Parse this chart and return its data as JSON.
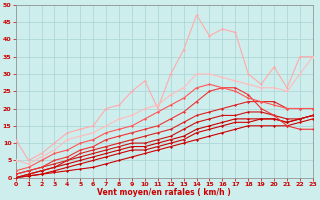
{
  "background_color": "#ceeeed",
  "grid_color": "#a8d4d4",
  "xlabel": "Vent moyen/en rafales ( km/h )",
  "xlim": [
    0,
    23
  ],
  "ylim": [
    0,
    50
  ],
  "yticks": [
    0,
    5,
    10,
    15,
    20,
    25,
    30,
    35,
    40,
    45,
    50
  ],
  "xticks": [
    0,
    1,
    2,
    3,
    4,
    5,
    6,
    7,
    8,
    9,
    10,
    11,
    12,
    13,
    14,
    15,
    16,
    17,
    18,
    19,
    20,
    21,
    22,
    23
  ],
  "series": [
    {
      "x": [
        0,
        1,
        2,
        3,
        4,
        5,
        6,
        7,
        8,
        9,
        10,
        11,
        12,
        13,
        14,
        15,
        16,
        17,
        18,
        19,
        20,
        21,
        22,
        23
      ],
      "y": [
        0,
        0.5,
        1,
        1.5,
        2,
        2.5,
        3,
        4,
        5,
        6,
        7,
        8,
        9,
        10,
        11,
        12,
        13,
        14,
        15,
        15,
        15,
        15,
        16,
        17
      ],
      "color": "#cc0000",
      "lw": 0.8,
      "marker": "D",
      "ms": 1.5
    },
    {
      "x": [
        0,
        1,
        2,
        3,
        4,
        5,
        6,
        7,
        8,
        9,
        10,
        11,
        12,
        13,
        14,
        15,
        16,
        17,
        18,
        19,
        20,
        21,
        22,
        23
      ],
      "y": [
        0,
        0.5,
        1,
        2,
        3,
        4,
        5,
        6,
        7,
        8,
        8,
        9,
        10,
        11,
        13,
        14,
        15,
        16,
        16,
        17,
        17,
        16,
        17,
        18
      ],
      "color": "#cc0000",
      "lw": 0.8,
      "marker": "D",
      "ms": 1.5
    },
    {
      "x": [
        0,
        1,
        2,
        3,
        4,
        5,
        6,
        7,
        8,
        9,
        10,
        11,
        12,
        13,
        14,
        15,
        16,
        17,
        18,
        19,
        20,
        21,
        22,
        23
      ],
      "y": [
        0,
        1,
        2,
        3,
        4,
        5,
        6,
        7,
        8,
        9,
        9,
        10,
        11,
        12,
        14,
        15,
        16,
        17,
        17,
        17,
        17,
        16,
        17,
        18
      ],
      "color": "#cc0000",
      "lw": 0.8,
      "marker": "D",
      "ms": 1.5
    },
    {
      "x": [
        0,
        1,
        2,
        3,
        4,
        5,
        6,
        7,
        8,
        9,
        10,
        11,
        12,
        13,
        14,
        15,
        16,
        17,
        18,
        19,
        20,
        21,
        22,
        23
      ],
      "y": [
        0,
        1,
        2,
        3,
        5,
        6,
        7,
        8,
        9,
        10,
        10,
        11,
        12,
        14,
        16,
        17,
        18,
        18,
        19,
        19,
        18,
        17,
        17,
        18
      ],
      "color": "#cc1111",
      "lw": 0.8,
      "marker": "D",
      "ms": 1.5
    },
    {
      "x": [
        0,
        1,
        2,
        3,
        4,
        5,
        6,
        7,
        8,
        9,
        10,
        11,
        12,
        13,
        14,
        15,
        16,
        17,
        18,
        19,
        20,
        21,
        22,
        23
      ],
      "y": [
        1,
        2,
        3,
        4,
        5,
        7,
        8,
        9,
        10,
        11,
        12,
        13,
        14,
        16,
        18,
        19,
        20,
        21,
        22,
        22,
        22,
        20,
        20,
        20
      ],
      "color": "#dd2222",
      "lw": 0.8,
      "marker": "D",
      "ms": 1.5
    },
    {
      "x": [
        0,
        1,
        2,
        3,
        4,
        5,
        6,
        7,
        8,
        9,
        10,
        11,
        12,
        13,
        14,
        15,
        16,
        17,
        18,
        19,
        20,
        21,
        22,
        23
      ],
      "y": [
        1,
        2,
        3,
        5,
        6,
        8,
        9,
        11,
        12,
        13,
        14,
        15,
        17,
        19,
        22,
        25,
        26,
        26,
        24,
        20,
        18,
        15,
        14,
        14
      ],
      "color": "#ee3333",
      "lw": 0.8,
      "marker": "D",
      "ms": 1.5
    },
    {
      "x": [
        0,
        1,
        2,
        3,
        4,
        5,
        6,
        7,
        8,
        9,
        10,
        11,
        12,
        13,
        14,
        15,
        16,
        17,
        18,
        19,
        20,
        21,
        22,
        23
      ],
      "y": [
        2,
        3,
        5,
        7,
        8,
        10,
        11,
        13,
        14,
        15,
        17,
        19,
        21,
        23,
        26,
        27,
        26,
        25,
        23,
        22,
        21,
        20,
        20,
        20
      ],
      "color": "#ff5555",
      "lw": 0.8,
      "marker": "D",
      "ms": 1.5
    },
    {
      "x": [
        0,
        1,
        2,
        3,
        4,
        5,
        6,
        7,
        8,
        9,
        10,
        11,
        12,
        13,
        14,
        15,
        16,
        17,
        18,
        19,
        20,
        21,
        22,
        23
      ],
      "y": [
        11,
        5,
        7,
        10,
        13,
        14,
        15,
        20,
        21,
        25,
        28,
        20,
        30,
        37,
        47,
        41,
        43,
        42,
        30,
        27,
        32,
        26,
        35,
        35
      ],
      "color": "#ffaaaa",
      "lw": 0.8,
      "marker": "D",
      "ms": 1.5
    },
    {
      "x": [
        0,
        1,
        2,
        3,
        4,
        5,
        6,
        7,
        8,
        9,
        10,
        11,
        12,
        13,
        14,
        15,
        16,
        17,
        18,
        19,
        20,
        21,
        22,
        23
      ],
      "y": [
        5,
        4,
        6,
        8,
        11,
        12,
        13,
        15,
        17,
        18,
        20,
        21,
        24,
        26,
        30,
        30,
        29,
        28,
        27,
        26,
        26,
        25,
        30,
        35
      ],
      "color": "#ffbbbb",
      "lw": 0.8,
      "marker": "D",
      "ms": 1.5
    }
  ]
}
